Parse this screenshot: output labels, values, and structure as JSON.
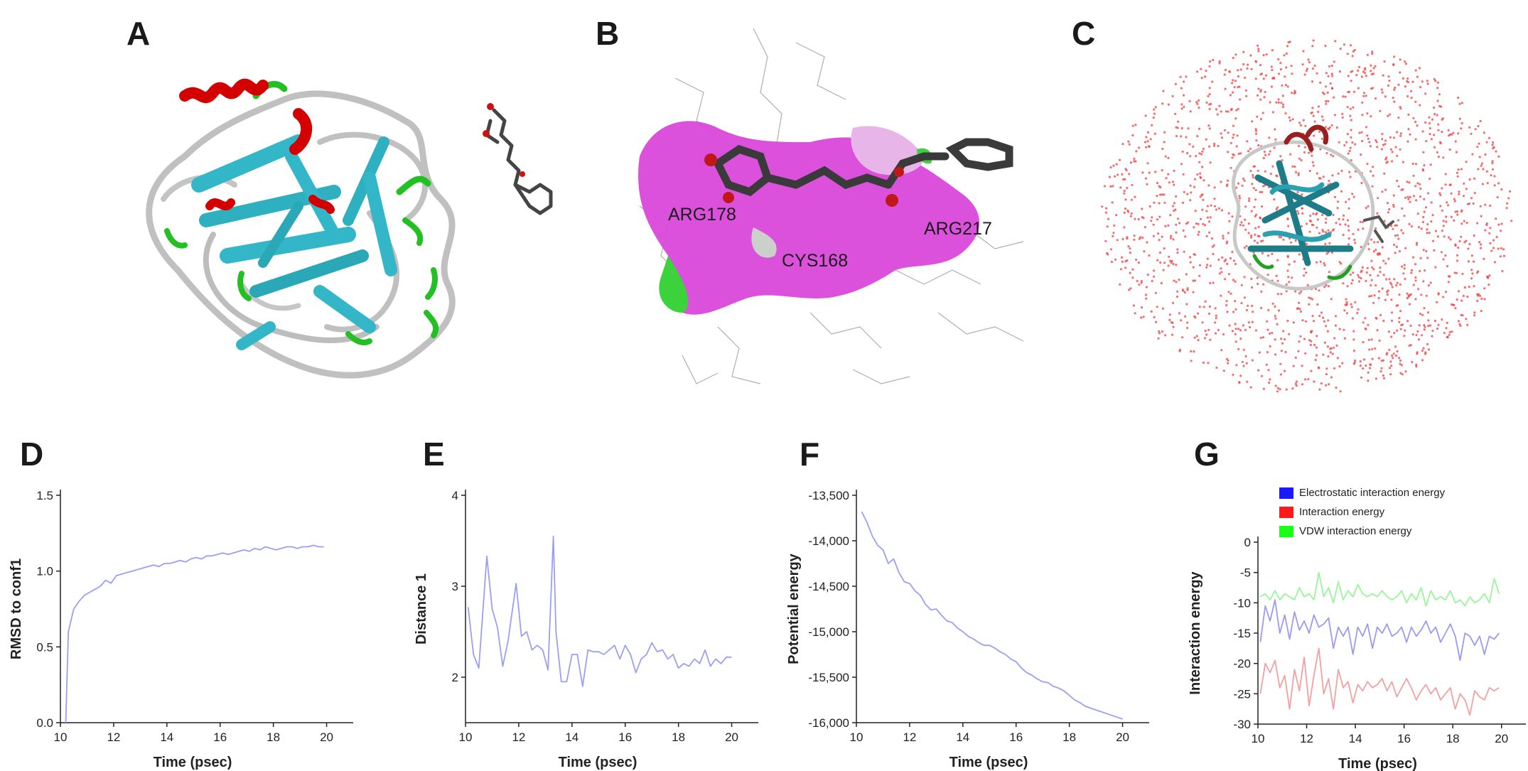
{
  "panels": {
    "A": "A",
    "B": "B",
    "C": "C",
    "D": "D",
    "E": "E",
    "F": "F",
    "G": "G"
  },
  "panel_b": {
    "labels": [
      "ARG178",
      "CYS168",
      "ARG217"
    ]
  },
  "colors": {
    "line": "#9a9ff5",
    "legend_electrostatic": "#1a1aff",
    "legend_interaction": "#ff1a1a",
    "legend_vdw": "#1aff1a",
    "line_electrostatic": "#9a9af5",
    "line_interaction": "#f2a0a0",
    "line_vdw": "#9af59a",
    "helix": "#d40000",
    "strand": "#33b7c8",
    "turn": "#22c022",
    "coil": "#c0c0c0",
    "surface": "#e040e0",
    "water": "#f04040"
  },
  "chart_data": [
    {
      "panel": "D",
      "type": "line",
      "xlabel": "Time (psec)",
      "ylabel": "RMSD to conf1",
      "xlim": [
        10,
        21
      ],
      "ylim": [
        0,
        1.5
      ],
      "xticks": [
        "10",
        "12",
        "14",
        "16",
        "18",
        "20"
      ],
      "yticks": [
        "0.0",
        "0.5",
        "1.0",
        "1.5"
      ],
      "series": [
        {
          "x": [
            10.2,
            10.3,
            10.5,
            10.7,
            10.9,
            11.1,
            11.3,
            11.5,
            11.7,
            11.9,
            12.1,
            12.3,
            12.5,
            12.7,
            12.9,
            13.1,
            13.3,
            13.5,
            13.7,
            13.9,
            14.1,
            14.3,
            14.5,
            14.7,
            14.9,
            15.1,
            15.3,
            15.5,
            15.7,
            15.9,
            16.1,
            16.3,
            16.5,
            16.7,
            16.9,
            17.1,
            17.3,
            17.5,
            17.7,
            17.9,
            18.1,
            18.3,
            18.5,
            18.7,
            18.9,
            19.1,
            19.3,
            19.5,
            19.7,
            19.9
          ],
          "y": [
            0.0,
            0.6,
            0.75,
            0.8,
            0.84,
            0.86,
            0.88,
            0.9,
            0.94,
            0.92,
            0.97,
            0.98,
            0.99,
            1.0,
            1.01,
            1.02,
            1.03,
            1.04,
            1.03,
            1.05,
            1.05,
            1.06,
            1.07,
            1.06,
            1.08,
            1.09,
            1.08,
            1.1,
            1.1,
            1.11,
            1.12,
            1.11,
            1.12,
            1.13,
            1.14,
            1.13,
            1.15,
            1.14,
            1.16,
            1.15,
            1.14,
            1.15,
            1.16,
            1.16,
            1.15,
            1.16,
            1.16,
            1.17,
            1.16,
            1.16
          ]
        }
      ]
    },
    {
      "panel": "E",
      "type": "line",
      "xlabel": "Time (psec)",
      "ylabel": "Distance 1",
      "xlim": [
        10,
        21
      ],
      "ylim": [
        1.5,
        4
      ],
      "xticks": [
        "10",
        "12",
        "14",
        "16",
        "18",
        "20"
      ],
      "yticks": [
        "2",
        "3",
        "4"
      ],
      "series": [
        {
          "x": [
            10.1,
            10.3,
            10.5,
            10.8,
            11.0,
            11.2,
            11.4,
            11.6,
            11.9,
            12.1,
            12.3,
            12.5,
            12.7,
            12.9,
            13.1,
            13.3,
            13.4,
            13.6,
            13.8,
            14.0,
            14.2,
            14.4,
            14.6,
            14.8,
            15.0,
            15.2,
            15.4,
            15.6,
            15.8,
            16.0,
            16.2,
            16.4,
            16.6,
            16.8,
            17.0,
            17.2,
            17.4,
            17.6,
            17.8,
            18.0,
            18.2,
            18.4,
            18.6,
            18.8,
            19.0,
            19.2,
            19.4,
            19.6,
            19.8,
            20.0
          ],
          "y": [
            2.77,
            2.25,
            2.1,
            3.33,
            2.75,
            2.55,
            2.12,
            2.4,
            3.03,
            2.45,
            2.5,
            2.3,
            2.35,
            2.3,
            2.08,
            3.55,
            2.5,
            1.95,
            1.95,
            2.25,
            2.25,
            1.9,
            2.3,
            2.28,
            2.28,
            2.25,
            2.3,
            2.35,
            2.2,
            2.35,
            2.25,
            2.05,
            2.2,
            2.25,
            2.38,
            2.28,
            2.3,
            2.2,
            2.25,
            2.1,
            2.15,
            2.12,
            2.2,
            2.15,
            2.3,
            2.12,
            2.2,
            2.15,
            2.22,
            2.22
          ]
        }
      ]
    },
    {
      "panel": "F",
      "type": "line",
      "xlabel": "Time (psec)",
      "ylabel": "Potential energy",
      "xlim": [
        10,
        21
      ],
      "ylim": [
        -16000,
        -13500
      ],
      "xticks": [
        "10",
        "12",
        "14",
        "16",
        "18",
        "20"
      ],
      "yticks": [
        "-13,500",
        "-14,000",
        "-14,500",
        "-15,000",
        "-15,500",
        "-16,000"
      ],
      "series": [
        {
          "x": [
            10.2,
            10.4,
            10.6,
            10.8,
            11.0,
            11.2,
            11.4,
            11.6,
            11.8,
            12.0,
            12.2,
            12.4,
            12.6,
            12.8,
            13.0,
            13.2,
            13.4,
            13.6,
            13.8,
            14.0,
            14.2,
            14.4,
            14.6,
            14.8,
            15.0,
            15.2,
            15.4,
            15.6,
            15.8,
            16.0,
            16.2,
            16.4,
            16.6,
            16.8,
            17.0,
            17.2,
            17.4,
            17.6,
            17.8,
            18.0,
            18.2,
            18.4,
            18.6,
            18.8,
            19.0,
            19.2,
            19.4,
            19.6,
            19.8,
            20.0
          ],
          "y": [
            -13680,
            -13800,
            -13950,
            -14050,
            -14100,
            -14250,
            -14200,
            -14350,
            -14450,
            -14470,
            -14550,
            -14600,
            -14700,
            -14760,
            -14750,
            -14820,
            -14880,
            -14900,
            -14960,
            -15000,
            -15050,
            -15080,
            -15120,
            -15150,
            -15150,
            -15180,
            -15220,
            -15250,
            -15300,
            -15330,
            -15400,
            -15450,
            -15480,
            -15520,
            -15550,
            -15560,
            -15600,
            -15620,
            -15650,
            -15700,
            -15750,
            -15780,
            -15820,
            -15840,
            -15860,
            -15880,
            -15900,
            -15920,
            -15940,
            -15960
          ]
        }
      ]
    },
    {
      "panel": "G",
      "type": "line",
      "xlabel": "Time (psec)",
      "ylabel": "Interaction energy",
      "xlim": [
        10,
        21
      ],
      "ylim": [
        -30,
        0
      ],
      "xticks": [
        "10",
        "12",
        "14",
        "16",
        "18",
        "20"
      ],
      "yticks": [
        "0",
        "-5",
        "-10",
        "-15",
        "-20",
        "-25",
        "-30"
      ],
      "legend": [
        "Electrostatic interaction energy",
        "Interaction energy",
        "VDW interaction energy"
      ],
      "series": [
        {
          "name": "Electrostatic interaction energy",
          "x": [
            10.1,
            10.3,
            10.5,
            10.7,
            10.9,
            11.1,
            11.3,
            11.5,
            11.7,
            11.9,
            12.1,
            12.3,
            12.5,
            12.7,
            12.9,
            13.1,
            13.3,
            13.5,
            13.7,
            13.9,
            14.1,
            14.3,
            14.5,
            14.7,
            14.9,
            15.1,
            15.3,
            15.5,
            15.7,
            15.9,
            16.1,
            16.3,
            16.5,
            16.7,
            16.9,
            17.1,
            17.3,
            17.5,
            17.7,
            17.9,
            18.1,
            18.3,
            18.5,
            18.7,
            18.9,
            19.1,
            19.3,
            19.5,
            19.7,
            19.9
          ],
          "y": [
            -16.5,
            -10.5,
            -13.0,
            -9.5,
            -15.0,
            -12.0,
            -16.0,
            -11.5,
            -14.5,
            -13.0,
            -15.0,
            -12.0,
            -14.0,
            -13.5,
            -12.5,
            -17.5,
            -14.0,
            -15.5,
            -14.0,
            -18.5,
            -14.0,
            -15.5,
            -13.5,
            -17.5,
            -14.0,
            -15.0,
            -13.5,
            -15.5,
            -15.0,
            -14.0,
            -16.5,
            -14.0,
            -15.5,
            -14.5,
            -13.0,
            -15.0,
            -14.0,
            -16.5,
            -15.0,
            -13.5,
            -15.5,
            -19.5,
            -15.0,
            -15.5,
            -17.0,
            -15.5,
            -18.5,
            -15.5,
            -16.0,
            -15.0
          ]
        },
        {
          "name": "Interaction energy",
          "x": [
            10.1,
            10.3,
            10.5,
            10.7,
            10.9,
            11.1,
            11.3,
            11.5,
            11.7,
            11.9,
            12.1,
            12.3,
            12.5,
            12.7,
            12.9,
            13.1,
            13.3,
            13.5,
            13.7,
            13.9,
            14.1,
            14.3,
            14.5,
            14.7,
            14.9,
            15.1,
            15.3,
            15.5,
            15.7,
            15.9,
            16.1,
            16.3,
            16.5,
            16.7,
            16.9,
            17.1,
            17.3,
            17.5,
            17.7,
            17.9,
            18.1,
            18.3,
            18.5,
            18.7,
            18.9,
            19.1,
            19.3,
            19.5,
            19.7,
            19.9
          ],
          "y": [
            -25.0,
            -20.0,
            -21.5,
            -19.5,
            -24.0,
            -22.0,
            -27.5,
            -21.0,
            -24.5,
            -19.0,
            -27.0,
            -22.0,
            -17.5,
            -25.0,
            -22.5,
            -27.5,
            -21.0,
            -24.0,
            -23.0,
            -26.5,
            -23.5,
            -24.5,
            -23.0,
            -24.0,
            -23.5,
            -22.5,
            -24.5,
            -23.0,
            -25.5,
            -24.0,
            -22.5,
            -24.0,
            -26.0,
            -24.5,
            -23.5,
            -25.0,
            -24.0,
            -26.0,
            -25.0,
            -24.0,
            -27.5,
            -25.0,
            -26.0,
            -28.5,
            -24.5,
            -25.5,
            -26.0,
            -24.0,
            -24.5,
            -24.0
          ]
        },
        {
          "name": "VDW interaction energy",
          "x": [
            10.1,
            10.3,
            10.5,
            10.7,
            10.9,
            11.1,
            11.3,
            11.5,
            11.7,
            11.9,
            12.1,
            12.3,
            12.5,
            12.7,
            12.9,
            13.1,
            13.3,
            13.5,
            13.7,
            13.9,
            14.1,
            14.3,
            14.5,
            14.7,
            14.9,
            15.1,
            15.3,
            15.5,
            15.7,
            15.9,
            16.1,
            16.3,
            16.5,
            16.7,
            16.9,
            17.1,
            17.3,
            17.5,
            17.7,
            17.9,
            18.1,
            18.3,
            18.5,
            18.7,
            18.9,
            19.1,
            19.3,
            19.5,
            19.7,
            19.9
          ],
          "y": [
            -9.0,
            -8.5,
            -9.5,
            -8.0,
            -9.5,
            -8.5,
            -9.0,
            -9.5,
            -7.5,
            -9.0,
            -8.5,
            -9.5,
            -5.0,
            -9.0,
            -7.5,
            -10.0,
            -6.5,
            -9.5,
            -8.0,
            -9.0,
            -7.0,
            -8.5,
            -9.0,
            -8.5,
            -9.0,
            -8.0,
            -9.0,
            -9.5,
            -9.0,
            -8.0,
            -10.0,
            -8.5,
            -9.5,
            -7.5,
            -10.5,
            -8.0,
            -9.5,
            -9.0,
            -9.5,
            -8.0,
            -10.0,
            -9.5,
            -10.5,
            -9.0,
            -10.0,
            -9.5,
            -8.5,
            -10.0,
            -6.0,
            -8.5
          ]
        }
      ]
    }
  ]
}
